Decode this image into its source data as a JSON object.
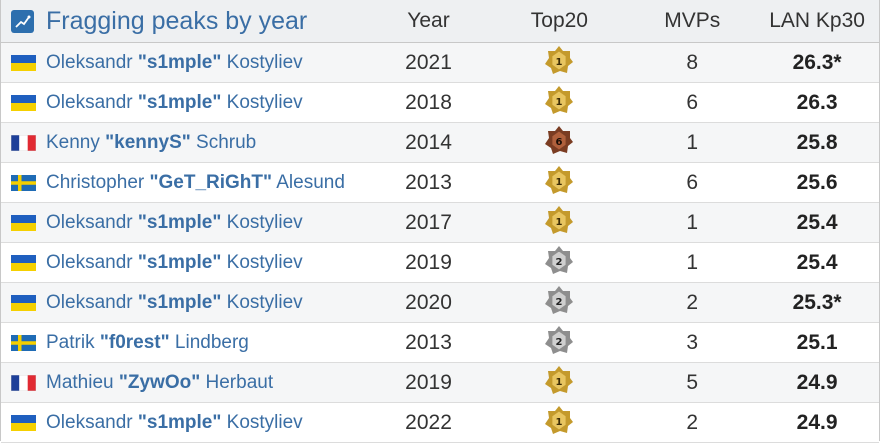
{
  "header": {
    "title": "Fragging peaks by year",
    "columns": [
      "Year",
      "Top20",
      "MVPs",
      "LAN Kp30"
    ]
  },
  "colors": {
    "link": "#3a6ea5",
    "gold": "#c9a033",
    "silver": "#9a9a9a",
    "bronze": "#8b4a2b"
  },
  "rows": [
    {
      "first": "Oleksandr ",
      "nick": "\"s1mple\"",
      "last": " Kostyliev",
      "flag": "ukraine-flag-icon",
      "year": "2021",
      "rank": "1",
      "medal": "gold",
      "mvps": "8",
      "kp30": "26.3*"
    },
    {
      "first": "Oleksandr ",
      "nick": "\"s1mple\"",
      "last": " Kostyliev",
      "flag": "ukraine-flag-icon",
      "year": "2018",
      "rank": "1",
      "medal": "gold",
      "mvps": "6",
      "kp30": "26.3"
    },
    {
      "first": "Kenny ",
      "nick": "\"kennyS\"",
      "last": " Schrub",
      "flag": "france-flag-icon",
      "year": "2014",
      "rank": "6",
      "medal": "bronze",
      "mvps": "1",
      "kp30": "25.8"
    },
    {
      "first": "Christopher ",
      "nick": "\"GeT_RiGhT\"",
      "last": " Alesund",
      "flag": "sweden-flag-icon",
      "year": "2013",
      "rank": "1",
      "medal": "gold",
      "mvps": "6",
      "kp30": "25.6"
    },
    {
      "first": "Oleksandr ",
      "nick": "\"s1mple\"",
      "last": " Kostyliev",
      "flag": "ukraine-flag-icon",
      "year": "2017",
      "rank": "1",
      "medal": "gold",
      "mvps": "1",
      "kp30": "25.4"
    },
    {
      "first": "Oleksandr ",
      "nick": "\"s1mple\"",
      "last": " Kostyliev",
      "flag": "ukraine-flag-icon",
      "year": "2019",
      "rank": "2",
      "medal": "silver",
      "mvps": "1",
      "kp30": "25.4"
    },
    {
      "first": "Oleksandr ",
      "nick": "\"s1mple\"",
      "last": " Kostyliev",
      "flag": "ukraine-flag-icon",
      "year": "2020",
      "rank": "2",
      "medal": "silver",
      "mvps": "2",
      "kp30": "25.3*"
    },
    {
      "first": "Patrik ",
      "nick": "\"f0rest\"",
      "last": " Lindberg",
      "flag": "sweden-flag-icon",
      "year": "2013",
      "rank": "2",
      "medal": "silver",
      "mvps": "3",
      "kp30": "25.1"
    },
    {
      "first": "Mathieu ",
      "nick": "\"ZywOo\"",
      "last": " Herbaut",
      "flag": "france-flag-icon",
      "year": "2019",
      "rank": "1",
      "medal": "gold",
      "mvps": "5",
      "kp30": "24.9"
    },
    {
      "first": "Oleksandr ",
      "nick": "\"s1mple\"",
      "last": " Kostyliev",
      "flag": "ukraine-flag-icon",
      "year": "2022",
      "rank": "1",
      "medal": "gold",
      "mvps": "2",
      "kp30": "24.9"
    }
  ]
}
